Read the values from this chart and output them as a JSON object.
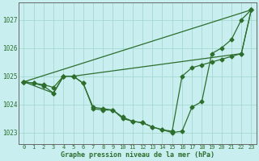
{
  "xlabel": "Graphe pression niveau de la mer (hPa)",
  "bg_color": "#c8eef0",
  "grid_color": "#9ed4c8",
  "line_color": "#2d6e2d",
  "ylim": [
    1022.6,
    1027.6
  ],
  "xlim": [
    -0.5,
    23.5
  ],
  "yticks": [
    1023,
    1024,
    1025,
    1026,
    1027
  ],
  "xticks": [
    0,
    1,
    2,
    3,
    4,
    5,
    6,
    7,
    8,
    9,
    10,
    11,
    12,
    13,
    14,
    15,
    16,
    17,
    18,
    19,
    20,
    21,
    22,
    23
  ],
  "line1_x": [
    0,
    1,
    2,
    3,
    4,
    5,
    6,
    7,
    8,
    9,
    10,
    11,
    12,
    13,
    14,
    15,
    16,
    17,
    18,
    19,
    20,
    21,
    22,
    23
  ],
  "line1_y": [
    1024.8,
    1024.75,
    1024.7,
    1024.6,
    1025.0,
    1025.0,
    1024.75,
    1023.9,
    1023.85,
    1023.8,
    1023.5,
    1023.4,
    1023.35,
    1023.2,
    1023.1,
    1023.0,
    1023.05,
    1023.9,
    1024.1,
    1025.8,
    1026.0,
    1026.3,
    1027.0,
    1027.35
  ],
  "line2_x": [
    0,
    1,
    2,
    3,
    4,
    5,
    6,
    7,
    8,
    9,
    10,
    11,
    12,
    13,
    14,
    15,
    16,
    17,
    18,
    19,
    20,
    21,
    22,
    23
  ],
  "line2_y": [
    1024.8,
    1024.75,
    1024.65,
    1024.4,
    1025.0,
    1025.0,
    1024.75,
    1023.85,
    1023.8,
    1023.8,
    1023.55,
    1023.4,
    1023.35,
    1023.2,
    1023.1,
    1023.05,
    1025.0,
    1025.3,
    1025.4,
    1025.5,
    1025.6,
    1025.7,
    1025.8,
    1027.35
  ],
  "line3_x": [
    0,
    3,
    4,
    5,
    22,
    23
  ],
  "line3_y": [
    1024.8,
    1024.4,
    1025.0,
    1025.0,
    1025.8,
    1027.35
  ],
  "line4_x": [
    0,
    23
  ],
  "line4_y": [
    1024.8,
    1027.35
  ],
  "figwidth": 3.2,
  "figheight": 2.0,
  "dpi": 100
}
